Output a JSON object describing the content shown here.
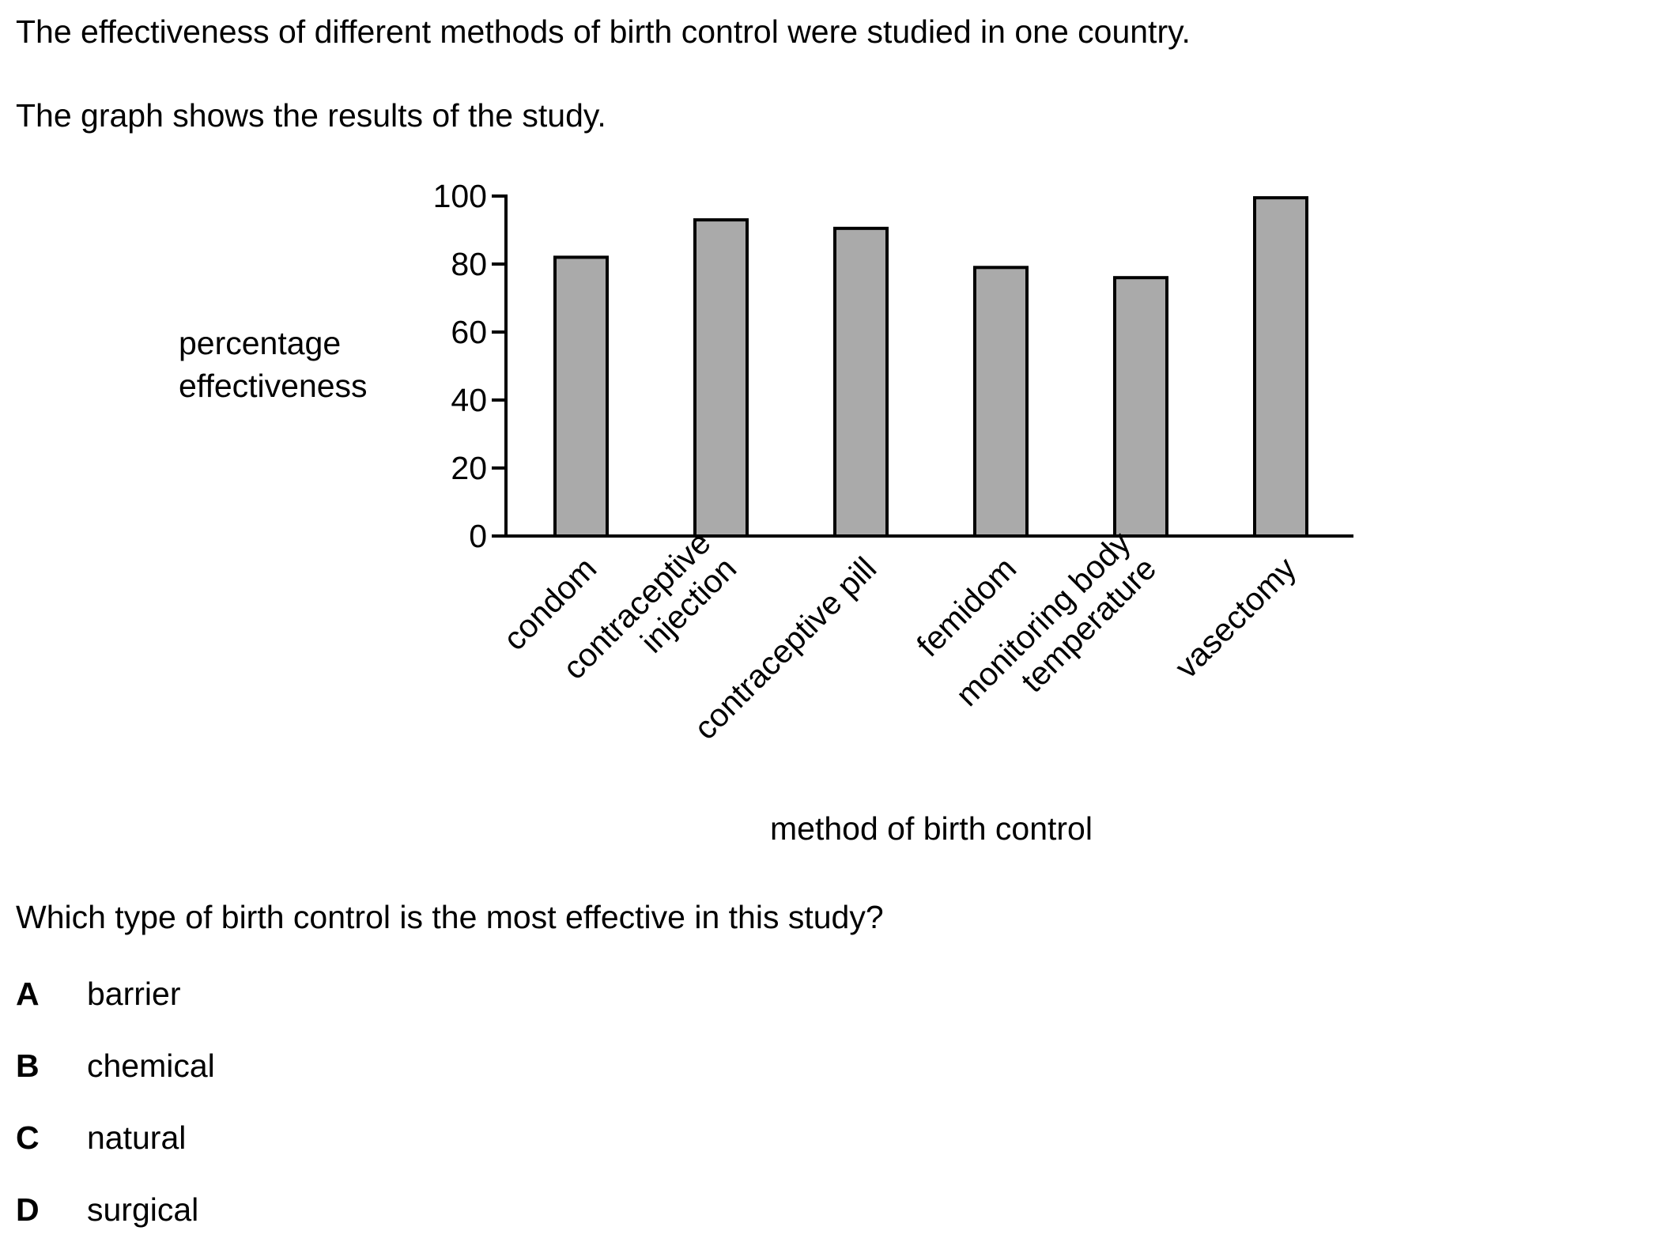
{
  "intro": {
    "line1": "The effectiveness of different methods of birth control were studied in one country.",
    "line2": "The graph shows the results of the study."
  },
  "question": {
    "text": "Which type of birth control is the most effective in this study?",
    "options": [
      {
        "letter": "A",
        "text": "barrier"
      },
      {
        "letter": "B",
        "text": "chemical"
      },
      {
        "letter": "C",
        "text": "natural"
      },
      {
        "letter": "D",
        "text": "surgical"
      }
    ]
  },
  "chart_data": {
    "type": "bar",
    "categories": [
      [
        "condom"
      ],
      [
        "contraceptive",
        "injection"
      ],
      [
        "contraceptive pill"
      ],
      [
        "femidom"
      ],
      [
        "monitoring body",
        "temperature"
      ],
      [
        "vasectomy"
      ]
    ],
    "values": [
      82,
      93,
      90.5,
      79,
      76,
      99.5
    ],
    "ylabel": [
      "percentage",
      "effectiveness"
    ],
    "xlabel": "method of birth control",
    "ylim": [
      0,
      100
    ],
    "yticks": [
      0,
      20,
      40,
      60,
      80,
      100
    ],
    "bar_color": "#aaaaaa",
    "grid": false,
    "legend": false
  }
}
